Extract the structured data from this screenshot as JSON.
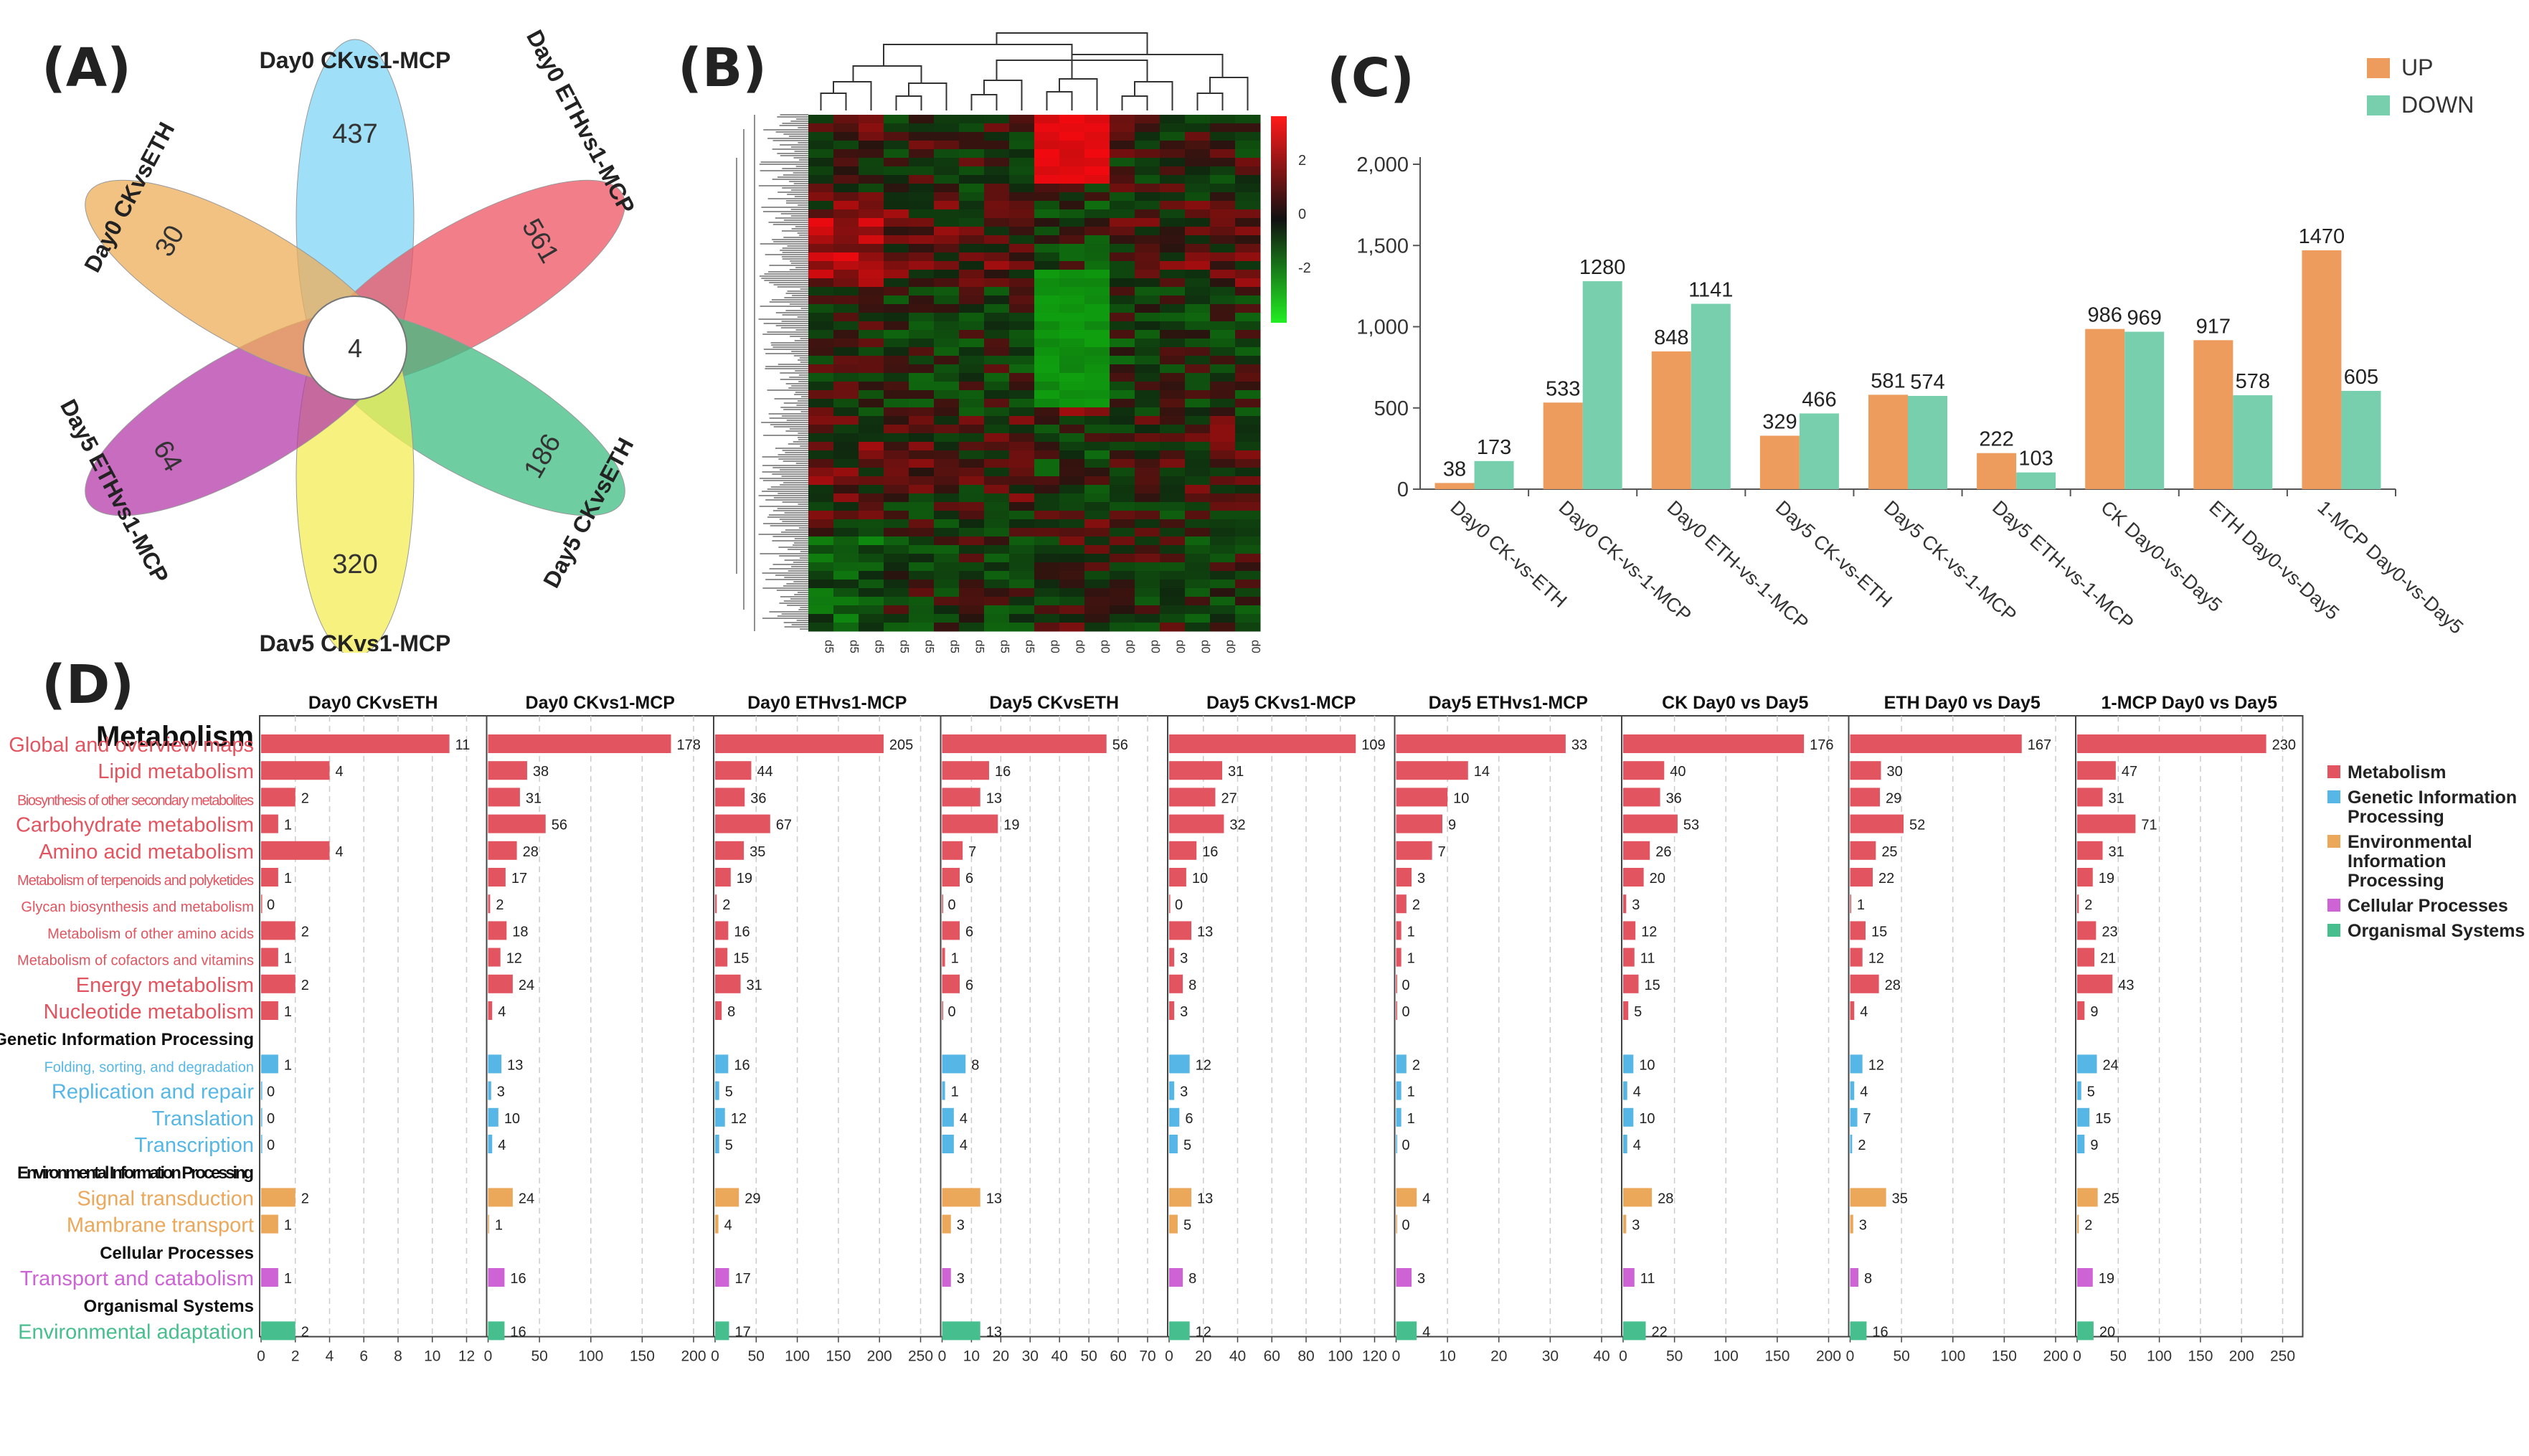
{
  "panels": {
    "A": "(A)",
    "B": "(B)",
    "C": "(C)",
    "D": "(D)"
  },
  "colors": {
    "up": "#ED9C5E",
    "down": "#77CFAE",
    "metabolism": "#E2545F",
    "genetic": "#56B7E6",
    "environmental": "#EBA85B",
    "cellular": "#CE63D6",
    "organismal": "#47BE8D"
  },
  "venn": {
    "center_value": "4",
    "petals": [
      {
        "name": "Day0 CKvs1-MCP",
        "value": "437",
        "color": "#7FD4F4"
      },
      {
        "name": "Day0 ETHvs1-MCP",
        "value": "561",
        "color": "#EE5361"
      },
      {
        "name": "Day5 CKvsETH",
        "value": "186",
        "color": "#3FBE82"
      },
      {
        "name": "Dav5 CKvs1-MCP",
        "value": "320",
        "color": "#F4EE55"
      },
      {
        "name": "Day5 ETHvs1-MCP",
        "value": "64",
        "color": "#B43BA8"
      },
      {
        "name": "Day0 CKvsETH",
        "value": "30",
        "color": "#EEAE58"
      }
    ]
  },
  "heatmap": {
    "samples": [
      "d5-CK-3",
      "d5-CK-1",
      "d5-CK-2",
      "d5-E-1",
      "d5-E-2",
      "d5-E-3",
      "d5-M-3",
      "d5-M-1",
      "d5-M-2",
      "d0-M-1",
      "d0-M-2",
      "d0-M-3",
      "d0-CK-1",
      "d0-CK-2",
      "d0-CK-3",
      "d0-E-1",
      "d0-E-2",
      "d0-E-3"
    ],
    "scale_ticks": [
      "2",
      "0",
      "-2"
    ]
  },
  "chart_data": [
    {
      "type": "bar",
      "panel": "C",
      "categories": [
        "Day0 CK-vs-ETH",
        "Day0 CK-vs-1-MCP",
        "Day0 ETH-vs-1-MCP",
        "Day5 CK-vs-ETH",
        "Day5 CK-vs-1-MCP",
        "Day5 ETH-vs-1-MCP",
        "CK Day0-vs-Day5",
        "ETH Day0-vs-Day5",
        "1-MCP Day0-vs-Day5"
      ],
      "series": [
        {
          "name": "UP",
          "values": [
            38,
            533,
            848,
            329,
            581,
            222,
            986,
            917,
            1470
          ]
        },
        {
          "name": "DOWN",
          "values": [
            173,
            1280,
            1141,
            466,
            574,
            103,
            969,
            578,
            605
          ]
        }
      ],
      "ylim": [
        0,
        2000
      ],
      "yticks": [
        "0",
        "500",
        "1,000",
        "1,500",
        "2,000"
      ],
      "legend": "top-right"
    },
    {
      "type": "bar",
      "panel": "D",
      "orientation": "horizontal",
      "section_title": "Metabolism",
      "rows": [
        {
          "label": "Global and overview maps",
          "category": "metabolism"
        },
        {
          "label": "Lipid metabolism",
          "category": "metabolism"
        },
        {
          "label": "Biosynthesis of other secondary metabolites",
          "category": "metabolism"
        },
        {
          "label": "Carbohydrate metabolism",
          "category": "metabolism"
        },
        {
          "label": "Amino acid metabolism",
          "category": "metabolism"
        },
        {
          "label": "Metabolism of terpenoids and polyketides",
          "category": "metabolism"
        },
        {
          "label": "Glycan biosynthesis and metabolism",
          "category": "metabolism"
        },
        {
          "label": "Metabolism of other amino acids",
          "category": "metabolism"
        },
        {
          "label": "Metabolism of cofactors and vitamins",
          "category": "metabolism"
        },
        {
          "label": "Energy metabolism",
          "category": "metabolism"
        },
        {
          "label": "Nucleotide metabolism",
          "category": "metabolism"
        },
        {
          "label": "Genetic Information Processing",
          "category": "header"
        },
        {
          "label": "Folding, sorting, and degradation",
          "category": "genetic"
        },
        {
          "label": "Replication and repair",
          "category": "genetic"
        },
        {
          "label": "Translation",
          "category": "genetic"
        },
        {
          "label": "Transcription",
          "category": "genetic"
        },
        {
          "label": "Environmental Information Processing",
          "category": "header"
        },
        {
          "label": "Signal transduction",
          "category": "environmental"
        },
        {
          "label": "Mambrane transport",
          "category": "environmental"
        },
        {
          "label": "Cellular Processes",
          "category": "header"
        },
        {
          "label": "Transport and catabolism",
          "category": "cellular"
        },
        {
          "label": "Organismal Systems",
          "category": "header"
        },
        {
          "label": "Environmental adaptation",
          "category": "organismal"
        }
      ],
      "panels": [
        {
          "title": "Day0 CKvsETH",
          "xmax": 12,
          "ticks": [
            "0",
            "2",
            "4",
            "6",
            "8",
            "10",
            "12"
          ],
          "values": [
            11,
            4,
            2,
            1,
            4,
            1,
            0,
            2,
            1,
            2,
            1,
            null,
            1,
            0,
            0,
            0,
            null,
            2,
            1,
            null,
            1,
            null,
            2
          ]
        },
        {
          "title": "Day0 CKvs1-MCP",
          "xmax": 200,
          "ticks": [
            "0",
            "50",
            "100",
            "150",
            "200"
          ],
          "values": [
            178,
            38,
            31,
            56,
            28,
            17,
            2,
            18,
            12,
            24,
            4,
            null,
            13,
            3,
            10,
            4,
            null,
            24,
            1,
            null,
            16,
            null,
            16
          ]
        },
        {
          "title": "Day0 ETHvs1-MCP",
          "xmax": 250,
          "ticks": [
            "0",
            "50",
            "100",
            "150",
            "200",
            "250"
          ],
          "values": [
            205,
            44,
            36,
            67,
            35,
            19,
            2,
            16,
            15,
            31,
            8,
            null,
            16,
            5,
            12,
            5,
            null,
            29,
            4,
            null,
            17,
            null,
            17
          ]
        },
        {
          "title": "Day5 CKvsETH",
          "xmax": 70,
          "ticks": [
            "0",
            "10",
            "20",
            "30",
            "40",
            "50",
            "60",
            "70"
          ],
          "values": [
            56,
            16,
            13,
            19,
            7,
            6,
            0,
            6,
            1,
            6,
            0,
            null,
            8,
            1,
            4,
            4,
            null,
            13,
            3,
            null,
            3,
            null,
            13
          ]
        },
        {
          "title": "Day5 CKvs1-MCP",
          "xmax": 120,
          "ticks": [
            "0",
            "20",
            "40",
            "60",
            "80",
            "100",
            "120"
          ],
          "values": [
            109,
            31,
            27,
            32,
            16,
            10,
            0,
            13,
            3,
            8,
            3,
            null,
            12,
            3,
            6,
            5,
            null,
            13,
            5,
            null,
            8,
            null,
            12
          ]
        },
        {
          "title": "Day5 ETHvs1-MCP",
          "xmax": 40,
          "ticks": [
            "0",
            "10",
            "20",
            "30",
            "40"
          ],
          "values": [
            33,
            14,
            10,
            9,
            7,
            3,
            2,
            1,
            1,
            0,
            0,
            null,
            2,
            1,
            1,
            0,
            null,
            4,
            0,
            null,
            3,
            null,
            4
          ]
        },
        {
          "title": "CK Day0 vs Day5",
          "xmax": 200,
          "ticks": [
            "0",
            "50",
            "100",
            "150",
            "200"
          ],
          "values": [
            176,
            40,
            36,
            53,
            26,
            20,
            3,
            12,
            11,
            15,
            5,
            null,
            10,
            4,
            10,
            4,
            null,
            28,
            3,
            null,
            11,
            null,
            22
          ]
        },
        {
          "title": "ETH Day0 vs Day5",
          "xmax": 200,
          "ticks": [
            "0",
            "50",
            "100",
            "150",
            "200"
          ],
          "values": [
            167,
            30,
            29,
            52,
            25,
            22,
            1,
            15,
            12,
            28,
            4,
            null,
            12,
            4,
            7,
            2,
            null,
            35,
            3,
            null,
            8,
            null,
            16
          ]
        },
        {
          "title": "1-MCP Day0 vs Day5",
          "xmax": 250,
          "ticks": [
            "0",
            "50",
            "100",
            "150",
            "200",
            "250"
          ],
          "values": [
            230,
            47,
            31,
            71,
            31,
            19,
            2,
            23,
            21,
            43,
            9,
            null,
            24,
            5,
            15,
            9,
            null,
            25,
            2,
            null,
            19,
            null,
            20
          ]
        }
      ],
      "legend": [
        {
          "label": "Metabolism",
          "category": "metabolism"
        },
        {
          "label": "Genetic Information Processing",
          "category": "genetic"
        },
        {
          "label": "Environmental Information Processing",
          "category": "environmental"
        },
        {
          "label": "Cellular Processes",
          "category": "cellular"
        },
        {
          "label": "Organismal Systems",
          "category": "organismal"
        }
      ]
    }
  ]
}
